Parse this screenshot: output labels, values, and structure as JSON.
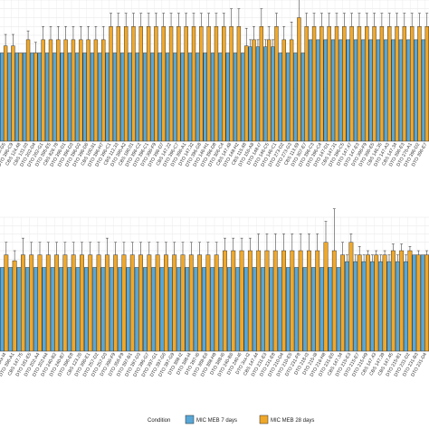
{
  "chart_data": {
    "type": "bar",
    "legend": {
      "title": "Condition",
      "position": "bottom",
      "entries": [
        {
          "name": "MIC MEB 7 days",
          "color": "#58a7d6"
        },
        {
          "name": "MIC MEB 28 days",
          "color": "#f0a82a"
        }
      ]
    },
    "grid": true,
    "panels": [
      {
        "categories": [
          "DTO 3xx-G5",
          "DTO 396-C9",
          "CBS 124.48",
          "CBS 131.03",
          "DTO 202-D4",
          "DTO 262-G1",
          "DTO 395-E5",
          "CBS 826.78",
          "DTO 396-D1",
          "DTO 396-D3",
          "DTO 396-D2",
          "DTO 396-D6",
          "CBS 100.81",
          "DTO 396-H7",
          "DTO 396-C1",
          "CBS 112.33",
          "DTO 396-A2",
          "CBS 180.01",
          "DTO 396-C2",
          "DTO 396-C1",
          "DTO 396-F9",
          "DTO 396-D7",
          "CBS 147.22",
          "DTO 396-C7",
          "DTO 396-A1",
          "DTO 147.32",
          "DTO 396-G8",
          "DTO 146-H1",
          "DTO 396-D8",
          "DTO 306-C4",
          "CBS 147.48",
          "DTO 148-H2",
          "CBS 115.68",
          "DTO 156-A8",
          "DTO 148-I7",
          "DTO 146-C5",
          "DTO 146-C1",
          "DTO 273-D2",
          "DTO 273-G3",
          "CBS 113.69",
          "DTO 307-E7",
          "DTO 396-C3",
          "DTO 396-C4",
          "DTO 147-D1",
          "CBS 147.31",
          "DTO 396-C5",
          "DTO 147.47",
          "DTO 147-E3",
          "DTO 396-F9",
          "DTO 396-E5",
          "CBS 146.35",
          "DTO 147-A3",
          "CBS 147.34",
          "DTO 396-E3",
          "DTO 276-A1",
          "DTO 396-D2",
          "DTO 396-E7"
        ],
        "series": [
          {
            "name": "MIC MEB 7 days",
            "values": [
              1,
              1,
              1,
              1,
              1,
              1,
              1,
              1,
              1,
              1,
              1,
              1,
              1,
              1,
              1,
              1,
              1,
              1,
              1,
              1,
              1,
              1,
              1,
              1,
              1,
              1,
              1,
              1,
              1,
              1,
              1,
              1,
              1,
              1.07,
              1.07,
              1.07,
              1.07,
              1,
              1,
              1,
              1,
              1.15,
              1.15,
              1.15,
              1.15,
              1.15,
              1.15,
              1.15,
              1.15,
              1.15,
              1.15,
              1.15,
              1.15,
              1.15,
              1.15,
              1.15,
              1.15
            ],
            "errors": [
              0,
              0,
              0,
              0,
              0,
              0,
              0,
              0,
              0,
              0,
              0,
              0,
              0,
              0,
              0,
              0,
              0,
              0,
              0,
              0,
              0,
              0,
              0,
              0,
              0,
              0,
              0,
              0,
              0,
              0,
              0,
              0,
              0,
              0.08,
              0.08,
              0.08,
              0.08,
              0,
              0,
              0,
              0,
              0,
              0,
              0,
              0,
              0,
              0,
              0,
              0,
              0,
              0,
              0,
              0,
              0,
              0,
              0,
              0
            ]
          },
          {
            "name": "MIC MEB 28 days",
            "values": [
              1.08,
              1.08,
              1,
              1.15,
              1,
              1.15,
              1.15,
              1.15,
              1.15,
              1.15,
              1.15,
              1.15,
              1.15,
              1.15,
              1.3,
              1.3,
              1.3,
              1.3,
              1.3,
              1.3,
              1.3,
              1.3,
              1.3,
              1.3,
              1.3,
              1.3,
              1.3,
              1.3,
              1.3,
              1.3,
              1.3,
              1.3,
              1.08,
              1.15,
              1.3,
              1.15,
              1.3,
              1.15,
              1.15,
              1.4,
              1.3,
              1.3,
              1.3,
              1.3,
              1.3,
              1.3,
              1.3,
              1.3,
              1.3,
              1.3,
              1.3,
              1.3,
              1.3,
              1.3,
              1.3,
              1.3,
              1.3
            ],
            "errors": [
              0.13,
              0.13,
              0,
              0.1,
              0.12,
              0.15,
              0.15,
              0.15,
              0.15,
              0.15,
              0.15,
              0.15,
              0.15,
              0.15,
              0.15,
              0.15,
              0.15,
              0.15,
              0.15,
              0.15,
              0.15,
              0.15,
              0.15,
              0.15,
              0.15,
              0.15,
              0.15,
              0.15,
              0.15,
              0.15,
              0.2,
              0.2,
              0.2,
              0.15,
              0.2,
              0.15,
              0.15,
              0.15,
              0.2,
              0.3,
              0.15,
              0.15,
              0.15,
              0.15,
              0.15,
              0.15,
              0.15,
              0.15,
              0.15,
              0.15,
              0.15,
              0.15,
              0.15,
              0.15,
              0.15,
              0.15,
              0.15
            ]
          }
        ]
      },
      {
        "categories": [
          "DTO 3xx-I4",
          "DTO 396-A1",
          "CBS 147.75",
          "DTO 181-E5",
          "DTO 202-A4",
          "DTO 202-H4",
          "DTO 240-B2",
          "DTO 240-B7",
          "DTO 396-E8",
          "CBS 123.26",
          "DTO 396-E1",
          "DTO 257-D2",
          "DTO 257-D3",
          "DTO 396-F9",
          "DTO 356-F9",
          "DTO 397-B1",
          "DTO 397-D3",
          "DTO 396-G7",
          "DTO 397-G1",
          "DTO 397-G6",
          "DTO 397-G9",
          "DTO 388-I2",
          "DTO 388-I4",
          "DTO 397-I6",
          "DTO 388-E6",
          "DTO 388-H9",
          "DTO 388-I6",
          "DTO 240-B6",
          "DTO 240-I6",
          "DTO 3xx-I2",
          "CBS 147.44",
          "DTO 231-E3",
          "DTO 231-E8",
          "DTO 210-D4",
          "DTO 210-E5",
          "DTO 231-F8",
          "DTO 218-I3",
          "DTO 215-I8",
          "DTO 216-H8",
          "DTO 231-E6",
          "CBS 147.34",
          "DTO 215-E3",
          "DTO 215-E7",
          "DTO 215-H9",
          "CBS 147.43",
          "CBS 147.39",
          "CBS 147.45",
          "DTO 215-B1",
          "DTO 231-D2",
          "DTO 231-B3",
          "DTO 231-D4"
        ],
        "series": [
          {
            "name": "MIC MEB 7 days",
            "values": [
              1,
              1,
              1,
              1,
              1,
              1,
              1,
              1,
              1,
              1,
              1,
              1,
              1,
              1,
              1,
              1,
              1,
              1,
              1,
              1,
              1,
              1,
              1,
              1,
              1,
              1,
              1,
              1,
              1,
              1,
              1,
              1,
              1,
              1,
              1,
              1,
              1,
              1,
              1,
              1,
              1,
              1.07,
              1.07,
              1.07,
              1.07,
              1.07,
              1.07,
              1.07,
              1.07,
              1.15,
              1.15
            ],
            "errors": [
              0,
              0,
              0,
              0,
              0,
              0,
              0,
              0,
              0,
              0,
              0,
              0,
              0,
              0,
              0,
              0,
              0,
              0,
              0,
              0,
              0,
              0,
              0,
              0,
              0,
              0,
              0,
              0,
              0,
              0,
              0,
              0,
              0,
              0,
              0,
              0,
              0,
              0,
              0,
              0,
              0,
              0.08,
              0.08,
              0.08,
              0.08,
              0.08,
              0.08,
              0.08,
              0.08,
              0,
              0
            ]
          },
          {
            "name": "MIC MEB 28 days",
            "values": [
              1.15,
              1.08,
              1.15,
              1.15,
              1.15,
              1.15,
              1.15,
              1.15,
              1.15,
              1.15,
              1.15,
              1.15,
              1.15,
              1.15,
              1.15,
              1.15,
              1.15,
              1.15,
              1.15,
              1.15,
              1.15,
              1.15,
              1.15,
              1.15,
              1.15,
              1.15,
              1.2,
              1.2,
              1.2,
              1.2,
              1.2,
              1.2,
              1.2,
              1.2,
              1.2,
              1.2,
              1.2,
              1.2,
              1.3,
              1.2,
              1.15,
              1.3,
              1.15,
              1.15,
              1.15,
              1.15,
              1.2,
              1.2,
              1.2,
              1.15,
              1.15
            ],
            "errors": [
              0.15,
              0.12,
              0.2,
              0.15,
              0.15,
              0.15,
              0.15,
              0.15,
              0.15,
              0.15,
              0.15,
              0.15,
              0.2,
              0.15,
              0.15,
              0.15,
              0.15,
              0.15,
              0.15,
              0.15,
              0.15,
              0.15,
              0.15,
              0.15,
              0.15,
              0.15,
              0.15,
              0.15,
              0.15,
              0.15,
              0.2,
              0.2,
              0.2,
              0.2,
              0.2,
              0.2,
              0.2,
              0.2,
              0.25,
              0.5,
              0.15,
              0.1,
              0.1,
              0.05,
              0.05,
              0.05,
              0.08,
              0.08,
              0.05,
              0.05,
              0.05
            ]
          }
        ]
      }
    ]
  }
}
